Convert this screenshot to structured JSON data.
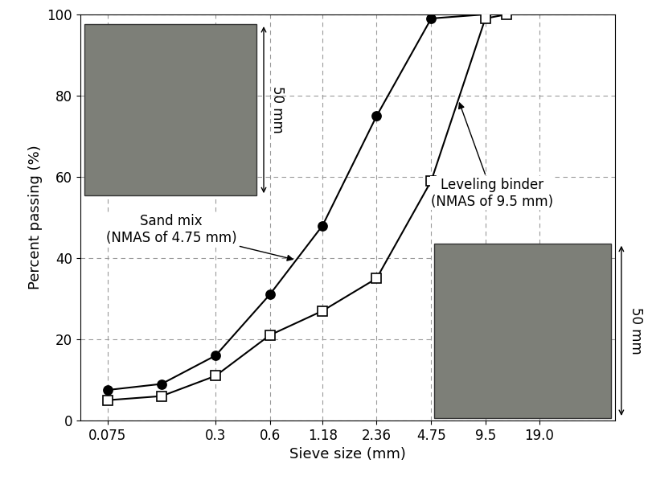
{
  "chart_data": {
    "type": "line",
    "x_label": "Sieve size (mm)",
    "y_label": "Percent passing (%)",
    "log": "x",
    "xlim": [
      0.053,
      50
    ],
    "xticks": [
      0.075,
      0.3,
      0.6,
      1.18,
      2.36,
      4.75,
      9.5,
      {
        "value": 19,
        "label": "19.0"
      }
    ],
    "ylim": [
      0,
      100
    ],
    "yticks": [
      0,
      20,
      40,
      60,
      80,
      100
    ],
    "grid": true,
    "series": [
      {
        "x": [
          0.075,
          0.15,
          0.3,
          0.6,
          1.18,
          2.36,
          4.75,
          9.5
        ],
        "values": [
          7.5,
          9,
          16,
          31,
          48,
          75,
          99,
          100
        ],
        "color": "#000000",
        "marker": "circle",
        "line_style": "solid"
      },
      {
        "x": [
          0.075,
          0.15,
          0.3,
          0.6,
          1.18,
          2.36,
          4.75,
          9.5,
          12.5
        ],
        "values": [
          5,
          6,
          11,
          21,
          27,
          35,
          59,
          99,
          100
        ],
        "color": "#000000",
        "marker": "open_square",
        "line_style": "solid"
      }
    ],
    "annotations": [
      "Sand mix\n(NMAS of 4.75 mm)",
      "Leveling binder\n(NMAS of 9.5 mm)",
      "50 mm",
      "50 mm"
    ]
  }
}
